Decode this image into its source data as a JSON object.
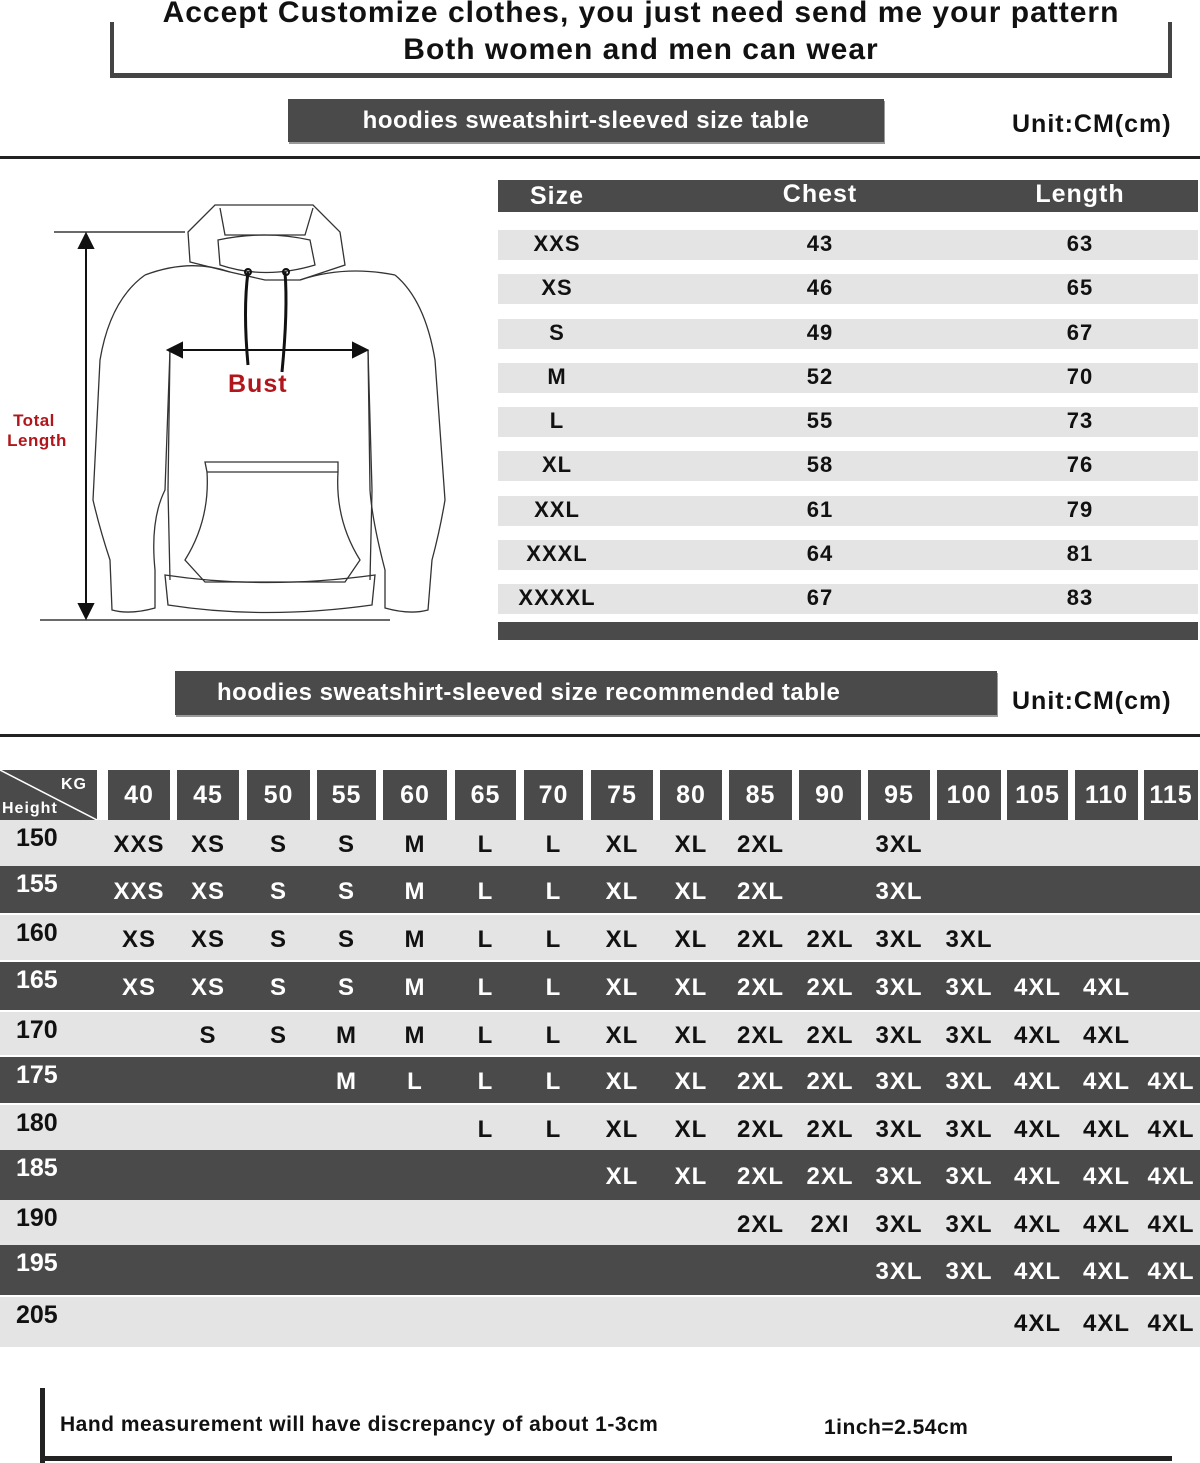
{
  "banner": {
    "line1": "Accept Customize clothes, you just need send me your pattern",
    "line2": "Both women and men can wear"
  },
  "size_table": {
    "title": "hoodies sweatshirt-sleeved size  table",
    "unit": "Unit:CM(cm)",
    "headers": [
      "Size",
      "Chest",
      "Length"
    ],
    "rows": [
      [
        "XXS",
        "43",
        "63"
      ],
      [
        "XS",
        "46",
        "65"
      ],
      [
        "S",
        "49",
        "67"
      ],
      [
        "M",
        "52",
        "70"
      ],
      [
        "L",
        "55",
        "73"
      ],
      [
        "XL",
        "58",
        "76"
      ],
      [
        "XXL",
        "61",
        "79"
      ],
      [
        "XXXL",
        "64",
        "81"
      ],
      [
        "XXXXL",
        "67",
        "83"
      ]
    ]
  },
  "diagram": {
    "bust_label": "Bust",
    "length_label_1": "Total",
    "length_label_2": "Length",
    "label_color": "#b0161b"
  },
  "recommended_table": {
    "title": "hoodies sweatshirt-sleeved size recommended table",
    "unit": "Unit:CM(cm)",
    "corner_top": "KG",
    "corner_bottom": "Height",
    "weights": [
      "40",
      "45",
      "50",
      "55",
      "60",
      "65",
      "70",
      "75",
      "80",
      "85",
      "90",
      "95",
      "100",
      "105",
      "110",
      "115"
    ],
    "rows": [
      {
        "height": "150",
        "sizes": [
          "XXS",
          "XS",
          "S",
          "S",
          "M",
          "L",
          "L",
          "XL",
          "XL",
          "2XL",
          "",
          "3XL",
          "",
          "",
          "",
          ""
        ]
      },
      {
        "height": "155",
        "sizes": [
          "XXS",
          "XS",
          "S",
          "S",
          "M",
          "L",
          "L",
          "XL",
          "XL",
          "2XL",
          "",
          "3XL",
          "",
          "",
          "",
          ""
        ]
      },
      {
        "height": "160",
        "sizes": [
          "XS",
          "XS",
          "S",
          "S",
          "M",
          "L",
          "L",
          "XL",
          "XL",
          "2XL",
          "2XL",
          "3XL",
          "3XL",
          "",
          "",
          ""
        ]
      },
      {
        "height": "165",
        "sizes": [
          "XS",
          "XS",
          "S",
          "S",
          "M",
          "L",
          "L",
          "XL",
          "XL",
          "2XL",
          "2XL",
          "3XL",
          "3XL",
          "4XL",
          "4XL",
          ""
        ]
      },
      {
        "height": "170",
        "sizes": [
          "",
          "S",
          "S",
          "M",
          "M",
          "L",
          "L",
          "XL",
          "XL",
          "2XL",
          "2XL",
          "3XL",
          "3XL",
          "4XL",
          "4XL",
          ""
        ]
      },
      {
        "height": "175",
        "sizes": [
          "",
          "",
          "",
          "M",
          "L",
          "L",
          "L",
          "XL",
          "XL",
          "2XL",
          "2XL",
          "3XL",
          "3XL",
          "4XL",
          "4XL",
          "4XL"
        ]
      },
      {
        "height": "180",
        "sizes": [
          "",
          "",
          "",
          "",
          "",
          "L",
          "L",
          "XL",
          "XL",
          "2XL",
          "2XL",
          "3XL",
          "3XL",
          "4XL",
          "4XL",
          "4XL"
        ]
      },
      {
        "height": "185",
        "sizes": [
          "",
          "",
          "",
          "",
          "",
          "",
          "",
          "XL",
          "XL",
          "2XL",
          "2XL",
          "3XL",
          "3XL",
          "4XL",
          "4XL",
          "4XL"
        ]
      },
      {
        "height": "190",
        "sizes": [
          "",
          "",
          "",
          "",
          "",
          "",
          "",
          "",
          "",
          "2XL",
          "2XI",
          "3XL",
          "3XL",
          "4XL",
          "4XL",
          "4XL"
        ]
      },
      {
        "height": "195",
        "sizes": [
          "",
          "",
          "",
          "",
          "",
          "",
          "",
          "",
          "",
          "",
          "",
          "3XL",
          "3XL",
          "4XL",
          "4XL",
          "4XL"
        ]
      },
      {
        "height": "205",
        "sizes": [
          "",
          "",
          "",
          "",
          "",
          "",
          "",
          "",
          "",
          "",
          "",
          "",
          "",
          "4XL",
          "4XL",
          "4XL"
        ]
      }
    ]
  },
  "footer": {
    "note": "Hand measurement will have discrepancy of about  1-3cm",
    "conversion": "1inch=2.54cm"
  },
  "colors": {
    "dark": "#4a4a4a",
    "light": "#e4e4e4"
  }
}
